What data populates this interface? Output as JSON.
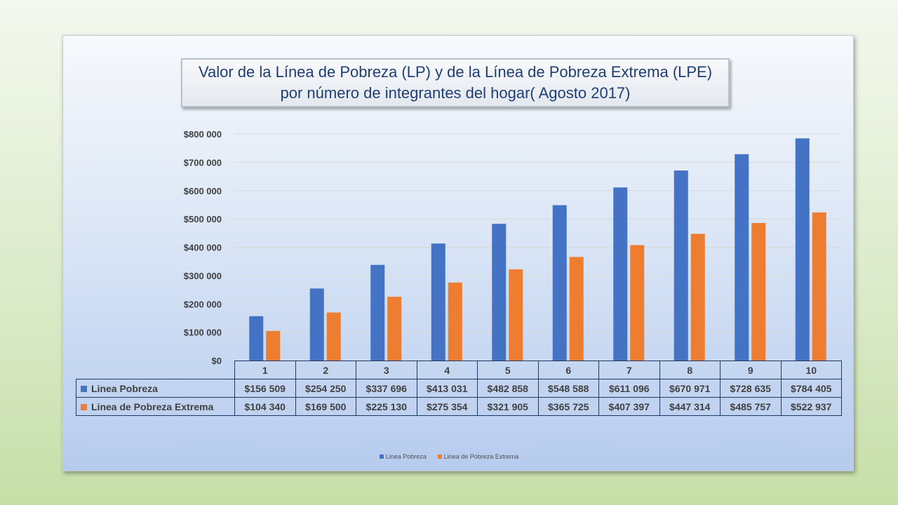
{
  "colors": {
    "series_1": "#4472c4",
    "series_2": "#ed7d31",
    "grid": "#d9d9d9",
    "table_border": "#1f3864"
  },
  "chart_data": {
    "type": "bar",
    "title_lines": [
      "Valor de la Línea de Pobreza (LP) y de la Línea de Pobreza Extrema (LPE)",
      "por número de integrantes del hogar( Agosto 2017)"
    ],
    "categories": [
      "1",
      "2",
      "3",
      "4",
      "5",
      "6",
      "7",
      "8",
      "9",
      "10"
    ],
    "series": [
      {
        "name": "Linea Pobreza",
        "values": [
          156509,
          254250,
          337696,
          413031,
          482858,
          548588,
          611096,
          670971,
          728635,
          784405
        ],
        "labels": [
          "$156 509",
          "$254 250",
          "$337 696",
          "$413 031",
          "$482 858",
          "$548 588",
          "$611 096",
          "$670 971",
          "$728 635",
          "$784 405"
        ]
      },
      {
        "name": "Linea de Pobreza Extrema",
        "values": [
          104340,
          169500,
          225130,
          275354,
          321905,
          365725,
          407397,
          447314,
          485757,
          522937
        ],
        "labels": [
          "$104 340",
          "$169 500",
          "$225 130",
          "$275 354",
          "$321 905",
          "$365 725",
          "$407 397",
          "$447 314",
          "$485 757",
          "$522 937"
        ]
      }
    ],
    "ylim": [
      0,
      800000
    ],
    "yticks": [
      0,
      100000,
      200000,
      300000,
      400000,
      500000,
      600000,
      700000,
      800000
    ],
    "ytick_labels": [
      "$0",
      "$100 000",
      "$200 000",
      "$300 000",
      "$400 000",
      "$500 000",
      "$600 000",
      "$700 000",
      "$800 000"
    ],
    "grid": true,
    "data_table": true,
    "legend_position": "bottom"
  }
}
